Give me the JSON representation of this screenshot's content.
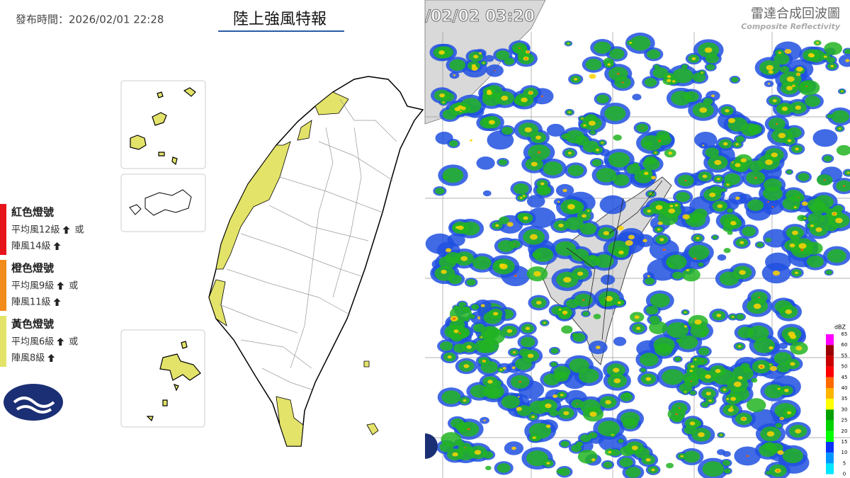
{
  "left_panel": {
    "issued": "發布時間：2026/02/01 22:28",
    "title": "陸上強風特報",
    "legend": [
      {
        "title": "紅色燈號",
        "line1": "平均風12級",
        "or": "或",
        "line2": "陣風14級",
        "color": "#e8141b"
      },
      {
        "title": "橙色燈號",
        "line1": "平均風9級",
        "or": "或",
        "line2": "陣風11級",
        "color": "#f28c1a"
      },
      {
        "title": "黃色燈號",
        "line1": "平均風6級",
        "or": "或",
        "line2": "陣風8級",
        "color": "#e3e36a"
      }
    ]
  },
  "right_panel": {
    "timestamp": "/02/02  03:20",
    "title": "雷達合成回波圖",
    "subtitle": "Composite Reflectivity",
    "unit": "dBZ",
    "scale": [
      "65",
      "60",
      "55",
      "50",
      "45",
      "40",
      "35",
      "30",
      "25",
      "20",
      "15",
      "10",
      "5",
      "0"
    ],
    "scale_colors": [
      "#ff00ff",
      "#9a0000",
      "#c80000",
      "#ff0000",
      "#ff6a00",
      "#ffb400",
      "#ffff00",
      "#00a000",
      "#00d200",
      "#00ff00",
      "#0a32ff",
      "#0096ff",
      "#00e6ff"
    ]
  }
}
